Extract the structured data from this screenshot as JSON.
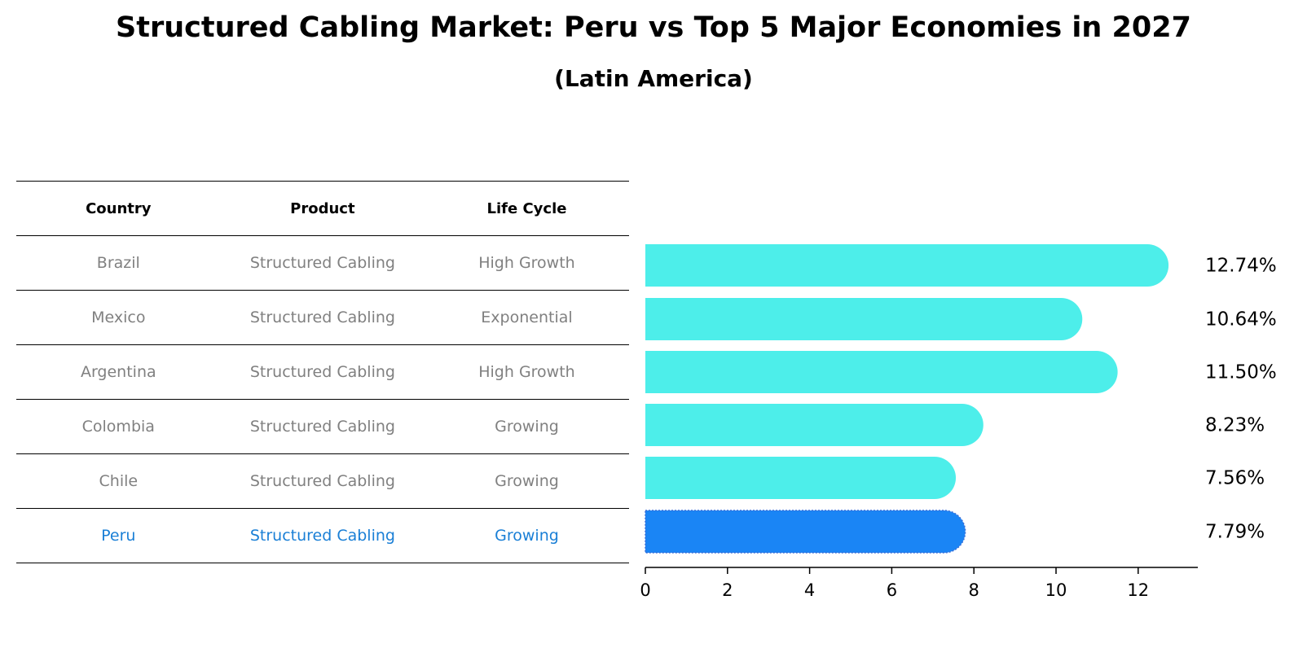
{
  "title": "Structured Cabling Market: Peru vs Top 5 Major Economies in 2027",
  "subtitle": "(Latin America)",
  "table": {
    "headers": [
      "Country",
      "Product",
      "Life Cycle"
    ],
    "rows": [
      [
        "Brazil",
        "Structured Cabling",
        "High Growth"
      ],
      [
        "Mexico",
        "Structured Cabling",
        "Exponential"
      ],
      [
        "Argentina",
        "Structured Cabling",
        "High Growth"
      ],
      [
        "Colombia",
        "Structured Cabling",
        "Growing"
      ],
      [
        "Chile",
        "Structured Cabling",
        "Growing"
      ],
      [
        "Peru",
        "Structured Cabling",
        "Growing"
      ]
    ]
  },
  "chart_data": {
    "type": "bar",
    "orientation": "horizontal",
    "categories": [
      "Brazil",
      "Mexico",
      "Argentina",
      "Colombia",
      "Chile",
      "Peru"
    ],
    "values": [
      12.74,
      10.64,
      11.5,
      8.23,
      7.56,
      7.79
    ],
    "value_labels": [
      "12.74%",
      "10.64%",
      "11.50%",
      "8.23%",
      "7.56%",
      "7.79%"
    ],
    "highlight": "Peru",
    "xlim": [
      0,
      13.4
    ],
    "xticks": [
      0,
      2,
      4,
      6,
      8,
      10,
      12
    ],
    "grid": false,
    "colors": {
      "default": "#4deeea",
      "highlight": "#1a85f5"
    }
  }
}
